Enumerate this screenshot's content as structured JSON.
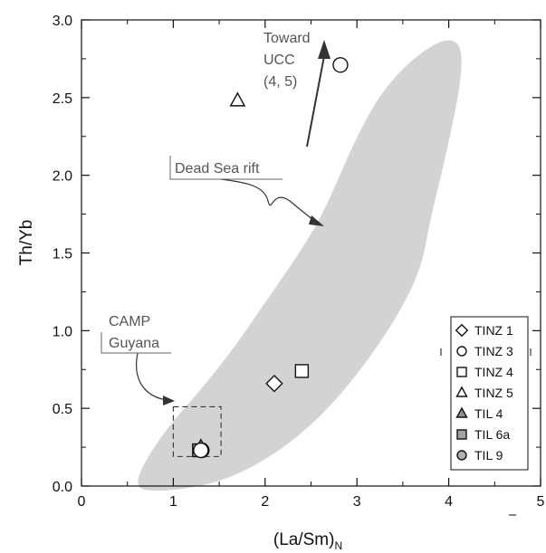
{
  "chart_data": {
    "type": "scatter",
    "xlabel_main": "(La/Sm)",
    "xlabel_sub": "N",
    "ylabel": "Th/Yb",
    "xlim": [
      0,
      5
    ],
    "ylim": [
      0,
      3
    ],
    "x_ticks": [
      "0",
      "1",
      "2",
      "3",
      "4",
      "5"
    ],
    "y_ticks": [
      "0.0",
      "0.5",
      "1.0",
      "1.5",
      "2.0",
      "2.5",
      "3.0"
    ],
    "grid": false,
    "legend_position": "bottom-right",
    "series": [
      {
        "name": "TINZ 1",
        "marker": "diamond",
        "fill": "#ffffff",
        "points": [
          [
            2.1,
            0.66
          ]
        ]
      },
      {
        "name": "TINZ 3",
        "marker": "circle",
        "fill": "#ffffff",
        "points": [
          [
            2.82,
            2.71
          ],
          [
            1.3,
            0.23
          ]
        ]
      },
      {
        "name": "TINZ 4",
        "marker": "square",
        "fill": "#ffffff",
        "points": [
          [
            2.4,
            0.74
          ]
        ]
      },
      {
        "name": "TINZ 5",
        "marker": "triangle",
        "fill": "#ffffff",
        "points": [
          [
            1.7,
            2.48
          ]
        ]
      },
      {
        "name": "TIL 4",
        "marker": "triangle",
        "fill": "#909090",
        "points": [
          [
            1.3,
            0.25
          ]
        ]
      },
      {
        "name": "TIL 6a",
        "marker": "square",
        "fill": "#a0a0a0",
        "points": [
          [
            1.28,
            0.23
          ]
        ]
      },
      {
        "name": "TIL 9",
        "marker": "circle",
        "fill": "#b0b0b0",
        "points": [
          [
            1.31,
            0.23
          ]
        ]
      }
    ],
    "field": {
      "label": "Dead Sea rift",
      "color": "#d3d3d3",
      "outline": [
        [
          0.6,
          0.02
        ],
        [
          0.66,
          0.12
        ],
        [
          0.8,
          0.26
        ],
        [
          1.0,
          0.42
        ],
        [
          1.3,
          0.62
        ],
        [
          1.65,
          0.88
        ],
        [
          2.0,
          1.18
        ],
        [
          2.35,
          1.48
        ],
        [
          2.6,
          1.72
        ],
        [
          2.8,
          1.98
        ],
        [
          3.0,
          2.25
        ],
        [
          3.25,
          2.52
        ],
        [
          3.55,
          2.72
        ],
        [
          3.85,
          2.85
        ],
        [
          4.05,
          2.88
        ],
        [
          4.15,
          2.8
        ],
        [
          4.12,
          2.55
        ],
        [
          3.95,
          2.08
        ],
        [
          3.8,
          1.72
        ],
        [
          3.7,
          1.4
        ],
        [
          3.45,
          1.1
        ],
        [
          3.05,
          0.75
        ],
        [
          2.6,
          0.44
        ],
        [
          2.1,
          0.2
        ],
        [
          1.55,
          0.03
        ],
        [
          1.0,
          -0.03
        ],
        [
          0.66,
          -0.03
        ]
      ]
    },
    "annotations": {
      "ucc_lines": [
        "Toward",
        "UCC",
        "(4, 5)"
      ],
      "camp_lines": [
        "CAMP",
        "Guyana"
      ],
      "dead_sea_label": "Dead Sea rift"
    },
    "camp_box": {
      "x": [
        1.0,
        1.52
      ],
      "y": [
        0.19,
        0.51
      ]
    }
  }
}
